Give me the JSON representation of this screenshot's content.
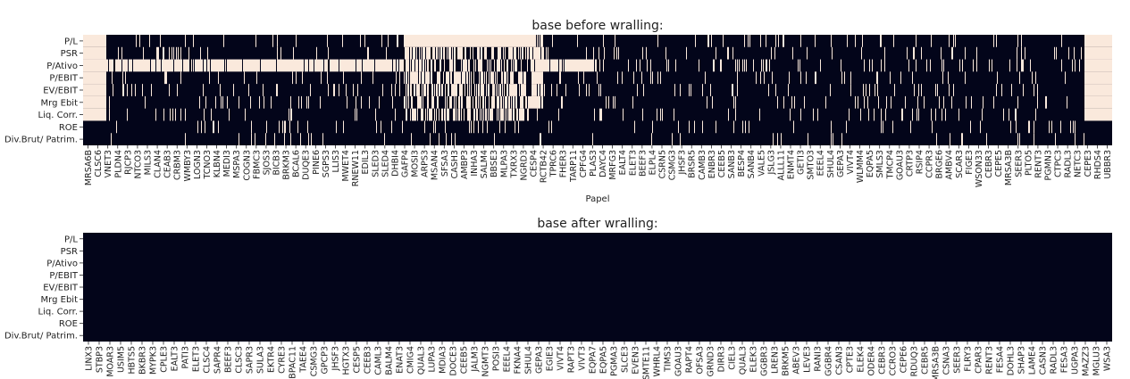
{
  "colors": {
    "missing": "#FAE9DC",
    "present": "#03051A"
  },
  "chart_data": [
    {
      "type": "heatmap",
      "title": "base before wralling:",
      "xlabel": "Papel",
      "ylabel": "",
      "rows": [
        "P/L",
        "PSR",
        "P/Ativo",
        "P/EBIT",
        "EV/EBIT",
        "Mrg Ebit",
        "Liq. Corr.",
        "ROE",
        "Div.Brut/ Patrim."
      ],
      "x_tick_labels": [
        "MRSA6B",
        "CLSC6",
        "VNET3",
        "PLDN4",
        "RJCP3",
        "NTCO3",
        "MILS3",
        "CLAN4",
        "CEAB3",
        "CRBM3",
        "WMBY3",
        "LOGN3",
        "TCNO3",
        "KLBN4",
        "MEDI3",
        "MSPA3",
        "COGN3",
        "FBMC3",
        "SJOS3",
        "BICB3",
        "BRKM3",
        "BCAL6",
        "DUQE3",
        "PINE6",
        "SGPS3",
        "LLIS3",
        "MWET4",
        "RNEW11",
        "EDIL3",
        "SLED3",
        "SLED4",
        "DHBI4",
        "GAFP4",
        "MOSI3",
        "ARPS3",
        "MSAN4",
        "SFSA3",
        "CASH3",
        "AMBP3",
        "INHA3",
        "SALM4",
        "BBSE3",
        "MLPA3",
        "TXRX3",
        "NGRD3",
        "CESP4",
        "RCTB42",
        "TPRC6",
        "FHER3",
        "TARP11",
        "CPFG4",
        "PLAS3",
        "DAYC4",
        "MRFG3",
        "EALT4",
        "ELET3",
        "BEEF3",
        "ELPL4",
        "CSRN5",
        "CSMG3",
        "JHSF3",
        "BRSR5",
        "CAMB3",
        "ENBR3",
        "CEEB5",
        "SANB3",
        "BESP4",
        "SANB4",
        "VALE5",
        "JSLG3",
        "ALLL11",
        "ENMT4",
        "GETI3",
        "SMTO3",
        "EEEL4",
        "SHUL4",
        "GEPA3",
        "VIVT4",
        "WLMM4",
        "EQPA5",
        "SMLS3",
        "TMCP4",
        "GOAU3",
        "CRTP3",
        "RSIP4",
        "CCPR3",
        "BRGE6",
        "AMBV4",
        "SCAR3",
        "FIGE3",
        "WSON33",
        "CEBR3",
        "CEPE5",
        "MRSA3B",
        "SEER3",
        "PLTO5",
        "RENT3",
        "PGMN3",
        "CTPC3",
        "RADL3",
        "NETC3",
        "CEPE3",
        "RHDS4",
        "UBBR3"
      ],
      "missing_summary": "before: many missing values (light cells) across indicators",
      "legend": "none"
    },
    {
      "type": "heatmap",
      "title": "base after wralling:",
      "xlabel": "",
      "ylabel": "",
      "rows": [
        "P/L",
        "PSR",
        "P/Ativo",
        "P/EBIT",
        "EV/EBIT",
        "Mrg Ebit",
        "Liq. Corr.",
        "ROE",
        "Div.Brut/ Patrim."
      ],
      "x_tick_labels": [
        "LINX3",
        "STBP3",
        "MOAR3",
        "USIM5",
        "HBTS5",
        "BKBR3",
        "MYPK3",
        "CPLE3",
        "EALT3",
        "PATI3",
        "ELET3",
        "CLSC4",
        "SAPR4",
        "BEEF3",
        "CLSC3",
        "SAPR3",
        "SULA3",
        "EKTR4",
        "CYRE3",
        "BPAC11",
        "TAEE4",
        "CSMG3",
        "GPCP3",
        "JHSF3",
        "HGTX3",
        "CESP5",
        "CEEB3",
        "CAML3",
        "BALM4",
        "ENAT3",
        "CMIG4",
        "QUAL3",
        "LUPA3",
        "MDIA3",
        "DOCE3",
        "CEEB5",
        "JALM3",
        "NGMT3",
        "POSI3",
        "EEEL4",
        "FKNA4",
        "SHUL4",
        "GEPA3",
        "EGIE3",
        "VIVT4",
        "RAPT3",
        "VIVT3",
        "EQPA7",
        "EQPA5",
        "PGMA3",
        "SLCE3",
        "EVEN3",
        "SMTE11",
        "WHRL4",
        "TIMS3",
        "GOAU3",
        "RAPT4",
        "OFSA3",
        "GRND3",
        "DIRR3",
        "CIEL3",
        "QUAL3",
        "ELEK3",
        "GGBR3",
        "LREN3",
        "BRKM5",
        "ABEV3",
        "LEVE3",
        "RANI3",
        "GGBR4",
        "CSAN3",
        "CPTE3",
        "ELEK4",
        "ODER4",
        "CEBR3",
        "CCRO3",
        "CEPE6",
        "RDUQ3",
        "CEBR5",
        "MRSA3B",
        "CSNA3",
        "SEER3",
        "FLRY3",
        "CPAR3",
        "RENT3",
        "FESA4",
        "DOHL3",
        "SHAP3",
        "LAME4",
        "CASN3",
        "RADL3",
        "FESA3",
        "UGPA3",
        "MAZZ3",
        "MGLU3",
        "WSA3"
      ],
      "missing_summary": "after: no missing values",
      "legend": "none"
    }
  ]
}
